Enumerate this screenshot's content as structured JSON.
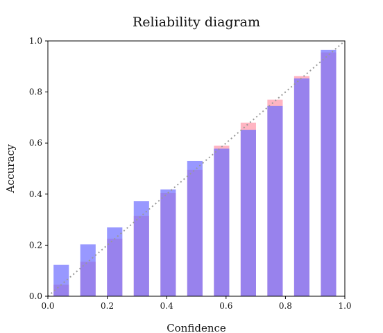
{
  "chart_data": {
    "type": "bar",
    "title": "Reliability diagram",
    "xlabel": "Confidence",
    "ylabel": "Accuracy",
    "xlim": [
      0,
      1
    ],
    "ylim": [
      0,
      1
    ],
    "grid": false,
    "xticks": [
      "0.0",
      "0.2",
      "0.4",
      "0.6",
      "0.8",
      "1.0"
    ],
    "yticks": [
      "0.0",
      "0.2",
      "0.4",
      "0.6",
      "0.8",
      "1.0"
    ],
    "bin_width": 0.05,
    "x": [
      0.045,
      0.135,
      0.225,
      0.315,
      0.405,
      0.495,
      0.585,
      0.675,
      0.765,
      0.855,
      0.945
    ],
    "series": [
      {
        "color": "#ff8da1",
        "opacity": 0.65,
        "values": [
          0.045,
          0.135,
          0.225,
          0.315,
          0.405,
          0.495,
          0.59,
          0.68,
          0.77,
          0.862,
          0.955
        ]
      },
      {
        "color": "#6c6cff",
        "opacity": 0.7,
        "values": [
          0.123,
          0.203,
          0.27,
          0.372,
          0.418,
          0.53,
          0.578,
          0.652,
          0.745,
          0.853,
          0.965
        ]
      }
    ],
    "reference_line": {
      "from": [
        0,
        0
      ],
      "to": [
        1,
        1
      ],
      "color": "#999999",
      "style": "dotted"
    }
  }
}
